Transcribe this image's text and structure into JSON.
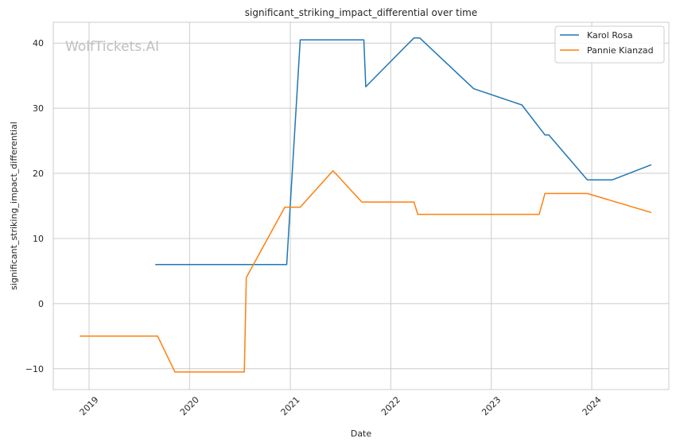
{
  "chart_data": {
    "type": "line",
    "title": "significant_striking_impact_differential over time",
    "xlabel": "Date",
    "ylabel": "significant_striking_impact_differential",
    "xlim": [
      "2018-08-24",
      "2024-10-07"
    ],
    "ylim": [
      -13.2,
      43.2
    ],
    "xticks": [
      "2019",
      "2020",
      "2021",
      "2022",
      "2023",
      "2024"
    ],
    "yticks": [
      -10,
      0,
      10,
      20,
      30,
      40
    ],
    "grid": true,
    "legend_position": "upper right",
    "watermark": "WolfTickets.AI",
    "series": [
      {
        "name": "Karol Rosa",
        "color": "#1f77b4",
        "points": [
          [
            "2019-08-31",
            6.0
          ],
          [
            "2020-12-19",
            6.0
          ],
          [
            "2021-02-06",
            40.5
          ],
          [
            "2021-09-25",
            40.5
          ],
          [
            "2021-10-02",
            33.3
          ],
          [
            "2022-03-26",
            40.8
          ],
          [
            "2022-04-16",
            40.8
          ],
          [
            "2022-10-29",
            33.0
          ],
          [
            "2023-04-22",
            30.5
          ],
          [
            "2023-07-15",
            25.9
          ],
          [
            "2023-07-29",
            25.9
          ],
          [
            "2023-12-16",
            19.0
          ],
          [
            "2024-03-16",
            19.0
          ],
          [
            "2024-08-03",
            21.3
          ]
        ]
      },
      {
        "name": "Pannie Kianzad",
        "color": "#ff7f0e",
        "points": [
          [
            "2018-11-30",
            -5.0
          ],
          [
            "2019-09-07",
            -5.0
          ],
          [
            "2019-11-09",
            -10.5
          ],
          [
            "2020-07-18",
            -10.5
          ],
          [
            "2020-07-25",
            4.0
          ],
          [
            "2020-12-12",
            14.8
          ],
          [
            "2021-02-06",
            14.8
          ],
          [
            "2021-06-05",
            20.4
          ],
          [
            "2021-09-18",
            15.6
          ],
          [
            "2022-03-26",
            15.6
          ],
          [
            "2022-04-09",
            13.7
          ],
          [
            "2023-06-24",
            13.7
          ],
          [
            "2023-07-15",
            16.9
          ],
          [
            "2023-12-16",
            16.9
          ],
          [
            "2024-08-03",
            14.0
          ]
        ]
      }
    ]
  }
}
